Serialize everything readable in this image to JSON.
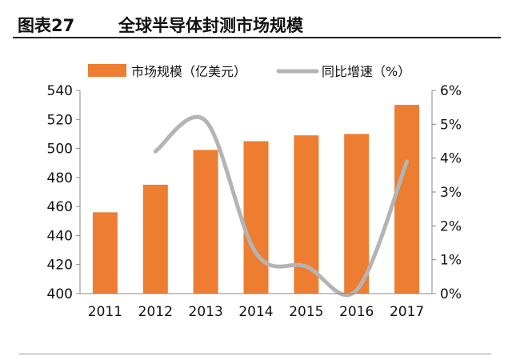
{
  "figure": {
    "label": "图表27",
    "title": "全球半导体封测市场规模"
  },
  "chart_data": {
    "type": "bar",
    "categories": [
      "2011",
      "2012",
      "2013",
      "2014",
      "2015",
      "2016",
      "2017"
    ],
    "series": [
      {
        "name": "市场规模（亿美元）",
        "type": "bar",
        "axis": "left",
        "color": "#ED7D31",
        "values": [
          456,
          475,
          499,
          505,
          509,
          510,
          530
        ]
      },
      {
        "name": "同比增速（%）",
        "type": "line",
        "axis": "right",
        "color": "#B4B4B4",
        "values": [
          null,
          4.2,
          5.1,
          1.2,
          0.8,
          0.1,
          3.9
        ]
      }
    ],
    "y_left": {
      "min": 400,
      "max": 540,
      "ticks": [
        "400",
        "420",
        "440",
        "460",
        "480",
        "500",
        "520",
        "540"
      ]
    },
    "y_right": {
      "min": 0,
      "max": 6,
      "ticks": [
        "0%",
        "1%",
        "2%",
        "3%",
        "4%",
        "5%",
        "6%"
      ]
    },
    "legend": "top",
    "grid": false
  }
}
